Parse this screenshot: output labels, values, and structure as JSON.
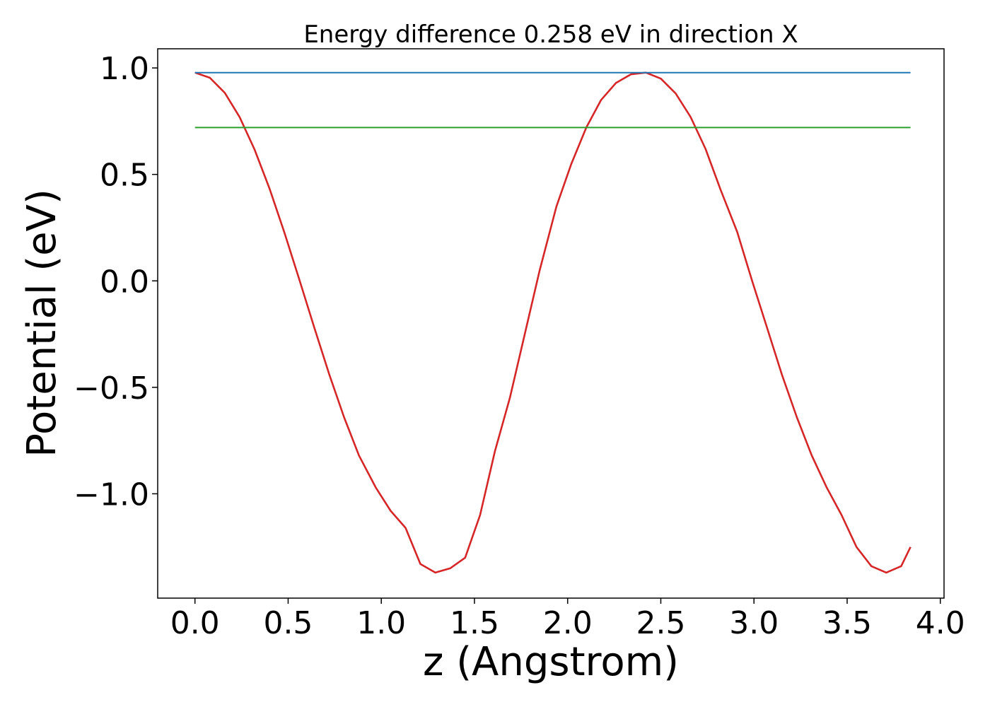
{
  "chart_data": {
    "type": "line",
    "title": "Energy difference 0.258 eV in direction X",
    "xlabel": "z (Angstrom)",
    "ylabel": "Potential (eV)",
    "xlim": [
      -0.2,
      4.02
    ],
    "ylim": [
      -1.49,
      1.09
    ],
    "x_ticks": [
      {
        "value": 0.0,
        "label": "0.0"
      },
      {
        "value": 0.5,
        "label": "0.5"
      },
      {
        "value": 1.0,
        "label": "1.0"
      },
      {
        "value": 1.5,
        "label": "1.5"
      },
      {
        "value": 2.0,
        "label": "2.0"
      },
      {
        "value": 2.5,
        "label": "2.5"
      },
      {
        "value": 3.0,
        "label": "3.0"
      },
      {
        "value": 3.5,
        "label": "3.5"
      },
      {
        "value": 4.0,
        "label": "4.0"
      }
    ],
    "y_ticks": [
      {
        "value": 1.0,
        "label": "1.0"
      },
      {
        "value": 0.5,
        "label": "0.5"
      },
      {
        "value": 0.0,
        "label": "0.0"
      },
      {
        "value": -0.5,
        "label": "−0.5"
      },
      {
        "value": -1.0,
        "label": "−1.0"
      }
    ],
    "grid": false,
    "legend": "none",
    "series": [
      {
        "color": "#d62728",
        "x": [
          0.0,
          0.08,
          0.16,
          0.24,
          0.32,
          0.4,
          0.48,
          0.56,
          0.64,
          0.72,
          0.8,
          0.88,
          0.97,
          1.05,
          1.13,
          1.21,
          1.29,
          1.37,
          1.45,
          1.53,
          1.61,
          1.69,
          1.77,
          1.85,
          1.94,
          2.02,
          2.1,
          2.18,
          2.26,
          2.34,
          2.42,
          2.5,
          2.58,
          2.66,
          2.74,
          2.82,
          2.91,
          2.99,
          3.07,
          3.15,
          3.23,
          3.31,
          3.39,
          3.47,
          3.55,
          3.63,
          3.71,
          3.79,
          3.84
        ],
        "y": [
          0.978,
          0.954,
          0.883,
          0.769,
          0.617,
          0.434,
          0.227,
          0.006,
          -0.218,
          -0.437,
          -0.64,
          -0.82,
          -0.97,
          -1.08,
          -1.16,
          -1.33,
          -1.37,
          -1.35,
          -1.3,
          -1.1,
          -0.8,
          -0.55,
          -0.25,
          0.05,
          0.35,
          0.55,
          0.72,
          0.85,
          0.93,
          0.97,
          0.978,
          0.95,
          0.88,
          0.77,
          0.62,
          0.43,
          0.23,
          0.0,
          -0.22,
          -0.44,
          -0.64,
          -0.82,
          -0.97,
          -1.1,
          -1.25,
          -1.34,
          -1.37,
          -1.34,
          -1.25
        ]
      },
      {
        "color": "#1f77b4",
        "x": [
          0.0,
          3.84
        ],
        "y": [
          0.978,
          0.978
        ]
      },
      {
        "color": "#2ca02c",
        "x": [
          0.0,
          3.84
        ],
        "y": [
          0.72,
          0.72
        ]
      }
    ]
  }
}
